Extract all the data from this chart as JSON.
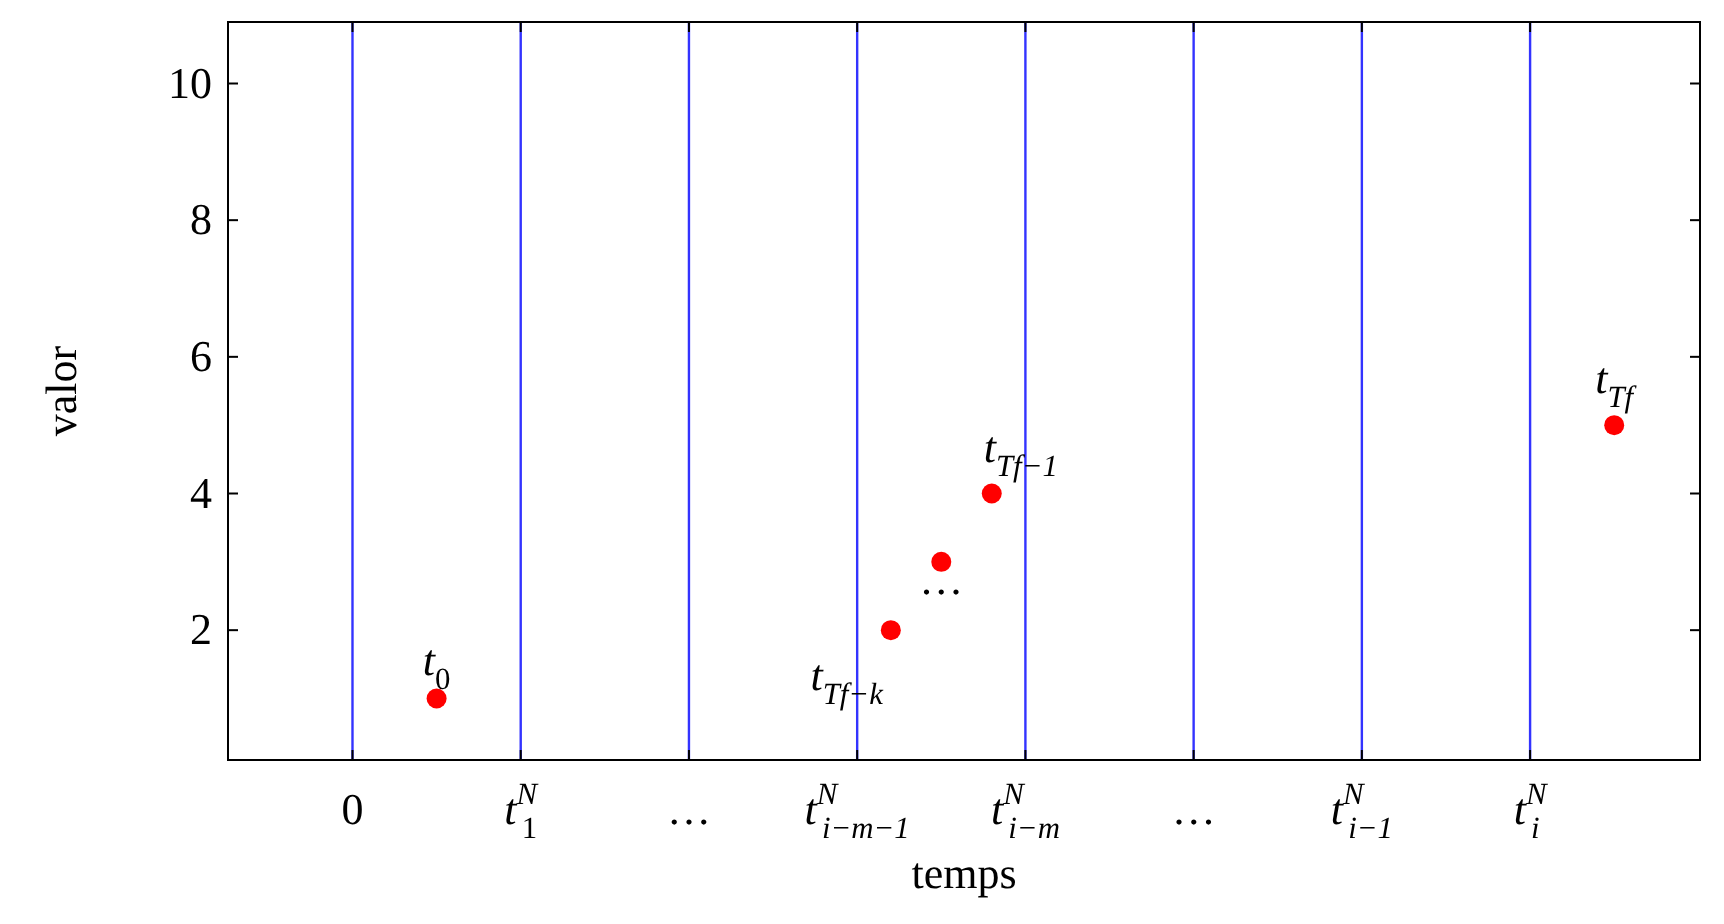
{
  "chart_data": {
    "type": "scatter",
    "xlabel": "temps",
    "ylabel": "valor",
    "xlim": [
      -0.74,
      8.01
    ],
    "ylim": [
      0.1,
      10.9
    ],
    "xticks": [
      0,
      {
        "value": 1,
        "label": "t$^{N}$$_{1}$"
      },
      {
        "value": 2,
        "label": "…"
      },
      {
        "value": 3,
        "label": "t$^{N}$$_{i−m−1}$"
      },
      {
        "value": 4,
        "label": "t$^{N}$$_{i−m}$"
      },
      {
        "value": 5,
        "label": "…"
      },
      {
        "value": 6,
        "label": "t$^{N}$$_{i−1}$"
      },
      {
        "value": 7,
        "label": "t$^{N}$$_{i}$"
      }
    ],
    "yticks": [
      2,
      4,
      6,
      8,
      10
    ],
    "grid": false,
    "marker": "circle",
    "series": [
      {
        "color": "#ff0000",
        "x": [
          0.5,
          3.2,
          3.5,
          3.8,
          7.5
        ],
        "values": [
          1,
          2,
          3,
          4,
          5
        ]
      }
    ],
    "ref_lines": [
      {
        "axis": "x",
        "value": 0,
        "color": "#3333ff"
      },
      {
        "axis": "x",
        "value": 1,
        "color": "#3333ff"
      },
      {
        "axis": "x",
        "value": 2,
        "color": "#3333ff"
      },
      {
        "axis": "x",
        "value": 3,
        "color": "#3333ff"
      },
      {
        "axis": "x",
        "value": 4,
        "color": "#3333ff"
      },
      {
        "axis": "x",
        "value": 5,
        "color": "#3333ff"
      },
      {
        "axis": "x",
        "value": 6,
        "color": "#3333ff"
      },
      {
        "axis": "x",
        "value": 7,
        "color": "#3333ff"
      }
    ],
    "annotations": [
      {
        "text": "t$_{0}$",
        "x": 0.5,
        "y": 1
      },
      {
        "text": "t$_{Tf−k}$",
        "x": 3.2,
        "y": 2
      },
      {
        "text": "…",
        "x": 3.5,
        "y": 3
      },
      {
        "text": "t$_{Tf−1}$",
        "x": 3.8,
        "y": 4
      },
      {
        "text": "t$_{Tf}$",
        "x": 7.5,
        "y": 5
      }
    ]
  }
}
